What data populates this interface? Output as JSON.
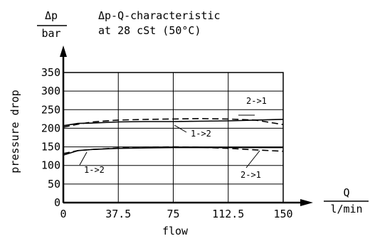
{
  "chart_data": {
    "type": "line",
    "title": "Δp-Q-characteristic",
    "subtitle": "at 28 cSt (50°C)",
    "y_unit": {
      "quantity": "Δp",
      "unit": "bar"
    },
    "x_unit": {
      "quantity": "Q",
      "unit": "l/min"
    },
    "ylabel": "pressure drop",
    "xlabel": "flow",
    "xlim": [
      0,
      150
    ],
    "ylim": [
      0,
      350
    ],
    "xticks": [
      "0",
      "37.5",
      "75",
      "112.5",
      "150"
    ],
    "yticks": [
      "0",
      "50",
      "100",
      "150",
      "200",
      "250",
      "300",
      "350"
    ],
    "grid": true,
    "series": [
      {
        "name": "1->2",
        "style": "solid",
        "x": [
          0,
          10,
          20,
          37.5,
          56,
          75,
          93,
          112.5,
          131,
          150
        ],
        "y": [
          207,
          213,
          214,
          217,
          218,
          218,
          219,
          220,
          222,
          224
        ]
      },
      {
        "name": "2->1",
        "style": "dashed",
        "x": [
          0,
          10,
          20,
          37.5,
          56,
          75,
          93,
          112.5,
          131,
          150
        ],
        "y": [
          203,
          211,
          217,
          222,
          224,
          225,
          226,
          225,
          222,
          210
        ]
      },
      {
        "name": "1->2",
        "style": "solid",
        "x": [
          0,
          10,
          20,
          37.5,
          56,
          75,
          93,
          112.5,
          131,
          150
        ],
        "y": [
          128,
          140,
          143,
          146,
          147,
          148,
          148,
          148,
          148,
          148
        ]
      },
      {
        "name": "2->1",
        "style": "dashed",
        "x": [
          0,
          10,
          20,
          37.5,
          56,
          75,
          93,
          112.5,
          131,
          150
        ],
        "y": [
          132,
          140,
          143,
          147,
          149,
          150,
          149,
          146,
          142,
          138
        ]
      }
    ],
    "annotations": [
      {
        "text": "2->1",
        "series": 1
      },
      {
        "text": "1->2",
        "series": 0
      },
      {
        "text": "1->2",
        "series": 2
      },
      {
        "text": "2->1",
        "series": 3
      }
    ]
  }
}
